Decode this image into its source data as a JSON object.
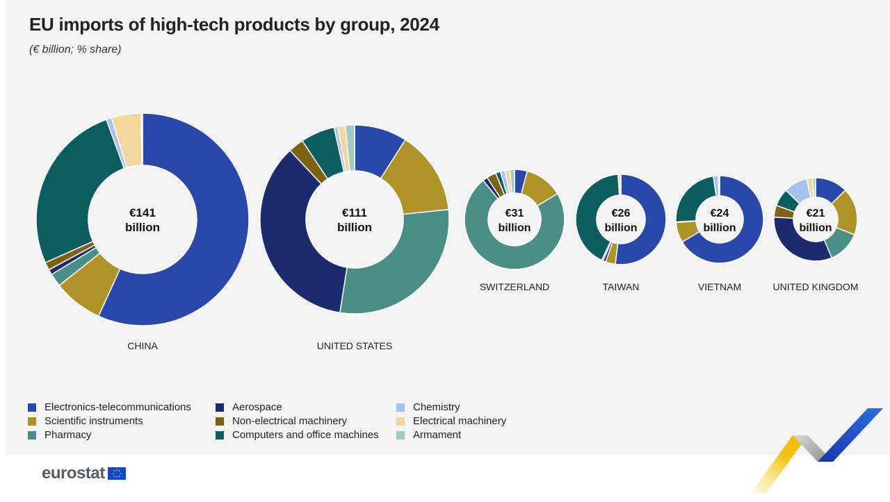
{
  "title": "EU imports of high-tech products by group, 2024",
  "subtitle": "(€ billion; % share)",
  "categories": [
    "Electronics-telecommunications",
    "Scientific instruments",
    "Pharmacy",
    "Aerospace",
    "Non-electrical machinery",
    "Computers and office machines",
    "Chemistry",
    "Electrical machinery",
    "Armament"
  ],
  "colors": [
    "#2a47aa",
    "#ae9329",
    "#4a8e88",
    "#1c2a6e",
    "#7d6214",
    "#0b5d5f",
    "#a3c2ef",
    "#f1d79e",
    "#a2c9c2"
  ],
  "logo": "eurostat",
  "chart_data": {
    "type": "pie",
    "variant": "donut",
    "series": [
      {
        "name": "CHINA",
        "center_value": "€141",
        "center_unit": "billion",
        "total": 141,
        "values": [
          56.5,
          7.5,
          2.0,
          0.8,
          1.2,
          26.0,
          0.8,
          4.5,
          0.2
        ]
      },
      {
        "name": "UNITED STATES",
        "center_value": "€111",
        "center_unit": "billion",
        "total": 111,
        "values": [
          8.5,
          13.5,
          27.5,
          33.5,
          2.5,
          5.5,
          0.6,
          1.2,
          1.5
        ]
      },
      {
        "name": "SWITZERLAND",
        "center_value": "€31",
        "center_unit": "billion",
        "total": 31,
        "values": [
          4.0,
          12.0,
          71.0,
          1.5,
          3.0,
          1.5,
          1.5,
          1.5,
          1.5
        ]
      },
      {
        "name": "TAIWAN",
        "center_value": "€26",
        "center_unit": "billion",
        "total": 26,
        "values": [
          52.0,
          3.5,
          0.0,
          1.0,
          0.5,
          42.0,
          0.0,
          1.0,
          0.0
        ]
      },
      {
        "name": "VIETNAM",
        "center_value": "€24",
        "center_unit": "billion",
        "total": 24,
        "values": [
          66.0,
          7.5,
          0.0,
          0.0,
          0.2,
          23.5,
          1.8,
          0.5,
          0.0
        ]
      },
      {
        "name": "UNITED KINGDOM",
        "center_value": "€21",
        "center_unit": "billion",
        "total": 21,
        "values": [
          11.0,
          16.0,
          11.0,
          28.0,
          4.0,
          6.0,
          8.0,
          2.0,
          1.0
        ]
      }
    ]
  }
}
